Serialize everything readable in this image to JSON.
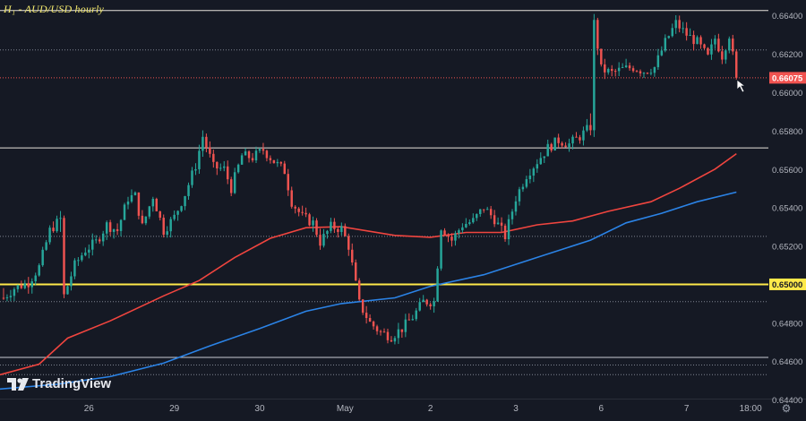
{
  "header": {
    "title": "H₁ - AUD/USD hourly"
  },
  "brand": {
    "name": "TradingView"
  },
  "chart_data": {
    "type": "candlestick",
    "symbol": "AUD/USD",
    "timeframe": "hourly",
    "ylim": [
      0.6441,
      0.6648
    ],
    "y_ticks": [
      "0.66400",
      "0.66200",
      "0.66000",
      "0.65800",
      "0.65600",
      "0.65400",
      "0.65200",
      "0.64800",
      "0.64600",
      "0.64400"
    ],
    "x_ticks": [
      {
        "label": "26",
        "t": 24
      },
      {
        "label": "29",
        "t": 48
      },
      {
        "label": "30",
        "t": 72
      },
      {
        "label": "May",
        "t": 96
      },
      {
        "label": "2",
        "t": 120
      },
      {
        "label": "3",
        "t": 144
      },
      {
        "label": "6",
        "t": 168
      },
      {
        "label": "7",
        "t": 192
      },
      {
        "label": "18:00",
        "t": 210
      }
    ],
    "t_range": [
      -1,
      215
    ],
    "last_t": 206,
    "current_price": {
      "value": 0.66075,
      "label": "0.66075",
      "color": "#f05350"
    },
    "highlight_level": {
      "value": 0.65,
      "label": "0.65000",
      "color": "#ffe94a"
    },
    "resistance_lines": [
      0.66425,
      0.6571
    ],
    "dotted_levels": [
      0.6622,
      0.6525,
      0.6491,
      0.6458,
      0.6453
    ],
    "box_lines": [
      0.6462
    ],
    "moving_averages": [
      {
        "name": "MA 100 (red)",
        "color": "#f0453f",
        "points": [
          [
            -1,
            0.6453
          ],
          [
            10,
            0.64585
          ],
          [
            18,
            0.6472
          ],
          [
            30,
            0.6481
          ],
          [
            45,
            0.6494
          ],
          [
            55,
            0.6502
          ],
          [
            65,
            0.6514
          ],
          [
            75,
            0.6524
          ],
          [
            85,
            0.65295
          ],
          [
            95,
            0.653
          ],
          [
            110,
            0.65255
          ],
          [
            120,
            0.65245
          ],
          [
            130,
            0.6527
          ],
          [
            140,
            0.6527
          ],
          [
            150,
            0.6531
          ],
          [
            160,
            0.6533
          ],
          [
            170,
            0.6538
          ],
          [
            182,
            0.6543
          ],
          [
            190,
            0.655
          ],
          [
            200,
            0.656
          ],
          [
            206,
            0.6568
          ]
        ]
      },
      {
        "name": "MA 200 (blue)",
        "color": "#2b83e6",
        "points": [
          [
            -1,
            0.64455
          ],
          [
            15,
            0.6448
          ],
          [
            30,
            0.6452
          ],
          [
            45,
            0.6459
          ],
          [
            58,
            0.6468
          ],
          [
            72,
            0.6477
          ],
          [
            85,
            0.6486
          ],
          [
            95,
            0.649
          ],
          [
            110,
            0.6493
          ],
          [
            120,
            0.6499
          ],
          [
            135,
            0.6505
          ],
          [
            150,
            0.6514
          ],
          [
            165,
            0.6523
          ],
          [
            175,
            0.6532
          ],
          [
            185,
            0.6537
          ],
          [
            195,
            0.6543
          ],
          [
            206,
            0.6548
          ]
        ]
      }
    ],
    "ohlc_anchors": [
      [
        0,
        0.6493
      ],
      [
        3,
        0.6498
      ],
      [
        7,
        0.6501
      ],
      [
        10,
        0.6509
      ],
      [
        13,
        0.6528
      ],
      [
        16,
        0.6534
      ],
      [
        17,
        0.6494
      ],
      [
        20,
        0.651
      ],
      [
        23,
        0.6518
      ],
      [
        26,
        0.6522
      ],
      [
        29,
        0.6531
      ],
      [
        32,
        0.6528
      ],
      [
        35,
        0.6545
      ],
      [
        37,
        0.6546
      ],
      [
        39,
        0.653
      ],
      [
        42,
        0.6546
      ],
      [
        45,
        0.6528
      ],
      [
        48,
        0.6535
      ],
      [
        51,
        0.6547
      ],
      [
        54,
        0.6562
      ],
      [
        56,
        0.6577
      ],
      [
        59,
        0.6561
      ],
      [
        62,
        0.656
      ],
      [
        64,
        0.655
      ],
      [
        67,
        0.6567
      ],
      [
        70,
        0.6566
      ],
      [
        73,
        0.657
      ],
      [
        76,
        0.6564
      ],
      [
        79,
        0.6559
      ],
      [
        81,
        0.6543
      ],
      [
        84,
        0.6535
      ],
      [
        87,
        0.6532
      ],
      [
        89,
        0.6522
      ],
      [
        92,
        0.653
      ],
      [
        95,
        0.6529
      ],
      [
        97,
        0.652
      ],
      [
        100,
        0.649
      ],
      [
        103,
        0.648
      ],
      [
        106,
        0.6475
      ],
      [
        109,
        0.6473
      ],
      [
        112,
        0.6477
      ],
      [
        115,
        0.6483
      ],
      [
        118,
        0.6491
      ],
      [
        121,
        0.6491
      ],
      [
        123,
        0.653
      ],
      [
        126,
        0.6523
      ],
      [
        129,
        0.6531
      ],
      [
        132,
        0.6533
      ],
      [
        135,
        0.654
      ],
      [
        138,
        0.6534
      ],
      [
        141,
        0.6525
      ],
      [
        144,
        0.6545
      ],
      [
        147,
        0.6557
      ],
      [
        150,
        0.6564
      ],
      [
        153,
        0.6571
      ],
      [
        156,
        0.6575
      ],
      [
        159,
        0.6573
      ],
      [
        162,
        0.6577
      ],
      [
        165,
        0.6582
      ],
      [
        166,
        0.6636
      ],
      [
        168,
        0.6612
      ],
      [
        171,
        0.661
      ],
      [
        174,
        0.6612
      ],
      [
        177,
        0.6613
      ],
      [
        180,
        0.6611
      ],
      [
        183,
        0.6613
      ],
      [
        186,
        0.6626
      ],
      [
        189,
        0.6636
      ],
      [
        192,
        0.663
      ],
      [
        195,
        0.6626
      ],
      [
        198,
        0.6618
      ],
      [
        200,
        0.6628
      ],
      [
        202,
        0.6619
      ],
      [
        204,
        0.663
      ],
      [
        206,
        0.6608
      ]
    ]
  }
}
